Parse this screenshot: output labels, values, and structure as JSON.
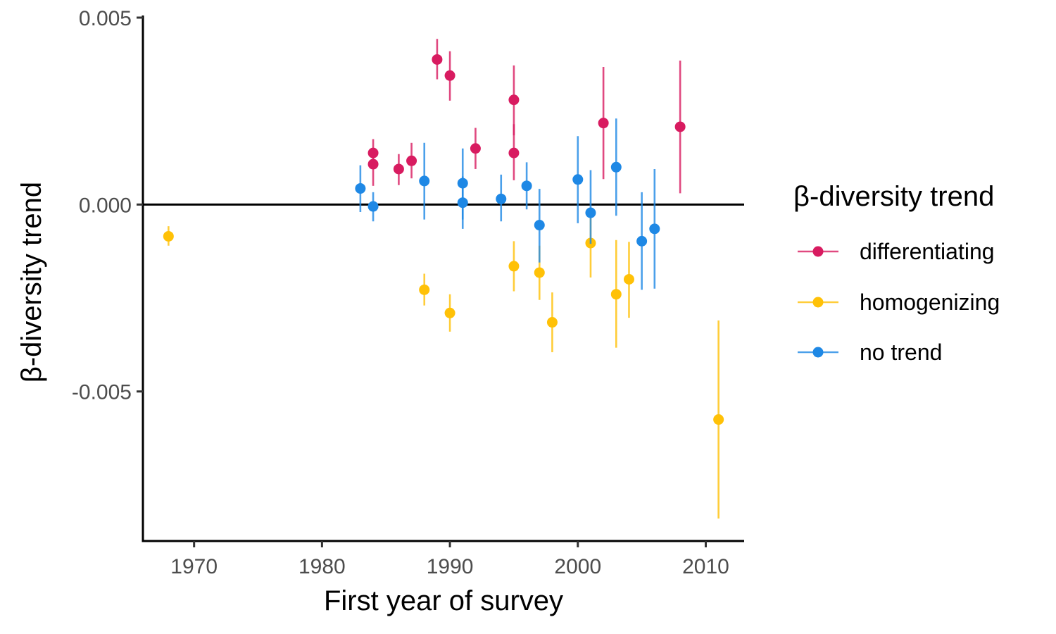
{
  "chart_data": {
    "type": "scatter",
    "xlabel": "First year of survey",
    "ylabel": "β-diversity trend",
    "xlim": [
      1966,
      2013
    ],
    "ylim": [
      -0.009,
      0.005
    ],
    "x_ticks": [
      1970,
      1980,
      1990,
      2000,
      2010
    ],
    "x_tick_labels": [
      "1970",
      "1980",
      "1990",
      "2000",
      "2010"
    ],
    "y_ticks": [
      0.005,
      0.0,
      -0.005
    ],
    "y_tick_labels": [
      "0.005",
      "0.000",
      "-0.005"
    ],
    "reference_line_y": 0,
    "grid": false,
    "legend": {
      "title": "β-diversity trend",
      "placement": "right",
      "entries": [
        "differentiating",
        "homogenizing",
        "no trend"
      ]
    },
    "series": [
      {
        "name": "differentiating",
        "color": "#D81B60",
        "points": [
          {
            "x": 1984,
            "y": 0.00138,
            "lo": 0.00095,
            "hi": 0.00175
          },
          {
            "x": 1984,
            "y": 0.00108,
            "lo": 0.0005,
            "hi": 0.0015
          },
          {
            "x": 1986,
            "y": 0.00095,
            "lo": 0.00052,
            "hi": 0.00135
          },
          {
            "x": 1987,
            "y": 0.00117,
            "lo": 0.0007,
            "hi": 0.00165
          },
          {
            "x": 1989,
            "y": 0.00388,
            "lo": 0.00335,
            "hi": 0.00443
          },
          {
            "x": 1990,
            "y": 0.00345,
            "lo": 0.00278,
            "hi": 0.0041
          },
          {
            "x": 1992,
            "y": 0.0015,
            "lo": 0.00095,
            "hi": 0.00205
          },
          {
            "x": 1995,
            "y": 0.0028,
            "lo": 0.00185,
            "hi": 0.00372
          },
          {
            "x": 1995,
            "y": 0.00138,
            "lo": 0.00065,
            "hi": 0.00215
          },
          {
            "x": 2002,
            "y": 0.00218,
            "lo": 0.00068,
            "hi": 0.00368
          },
          {
            "x": 2008,
            "y": 0.00208,
            "lo": 0.0003,
            "hi": 0.00385
          }
        ]
      },
      {
        "name": "homogenizing",
        "color": "#FFC107",
        "points": [
          {
            "x": 1968,
            "y": -0.00085,
            "lo": -0.0011,
            "hi": -0.00058
          },
          {
            "x": 1988,
            "y": -0.00228,
            "lo": -0.0027,
            "hi": -0.00185
          },
          {
            "x": 1990,
            "y": -0.0029,
            "lo": -0.0034,
            "hi": -0.0024
          },
          {
            "x": 1995,
            "y": -0.00165,
            "lo": -0.00232,
            "hi": -0.00098
          },
          {
            "x": 1997,
            "y": -0.00182,
            "lo": -0.00255,
            "hi": -0.0011
          },
          {
            "x": 1998,
            "y": -0.00315,
            "lo": -0.00395,
            "hi": -0.00235
          },
          {
            "x": 2001,
            "y": -0.00103,
            "lo": -0.00195,
            "hi": -0.0002
          },
          {
            "x": 2003,
            "y": -0.0024,
            "lo": -0.00383,
            "hi": -0.00095
          },
          {
            "x": 2004,
            "y": -0.002,
            "lo": -0.00303,
            "hi": -0.001
          },
          {
            "x": 2011,
            "y": -0.00575,
            "lo": -0.0084,
            "hi": -0.0031
          }
        ]
      },
      {
        "name": "no trend",
        "color": "#1E88E5",
        "points": [
          {
            "x": 1983,
            "y": 0.00043,
            "lo": -0.0002,
            "hi": 0.00105
          },
          {
            "x": 1984,
            "y": -5e-05,
            "lo": -0.00045,
            "hi": 0.00033
          },
          {
            "x": 1988,
            "y": 0.00063,
            "lo": -0.0004,
            "hi": 0.00165
          },
          {
            "x": 1991,
            "y": 0.00057,
            "lo": -0.0004,
            "hi": 0.0015
          },
          {
            "x": 1991,
            "y": 5e-05,
            "lo": -0.00065,
            "hi": 0.00075
          },
          {
            "x": 1994,
            "y": 0.00015,
            "lo": -0.00045,
            "hi": 0.0008
          },
          {
            "x": 1996,
            "y": 0.0005,
            "lo": -0.00013,
            "hi": 0.00113
          },
          {
            "x": 1997,
            "y": -0.00055,
            "lo": -0.00155,
            "hi": 0.00042
          },
          {
            "x": 2000,
            "y": 0.00067,
            "lo": -0.0005,
            "hi": 0.00183
          },
          {
            "x": 2001,
            "y": -0.00022,
            "lo": -0.00105,
            "hi": 0.00092
          },
          {
            "x": 2003,
            "y": 0.001,
            "lo": -0.0003,
            "hi": 0.0023
          },
          {
            "x": 2005,
            "y": -0.00098,
            "lo": -0.00228,
            "hi": 0.00033
          },
          {
            "x": 2006,
            "y": -0.00065,
            "lo": -0.00225,
            "hi": 0.00095
          }
        ]
      }
    ]
  }
}
